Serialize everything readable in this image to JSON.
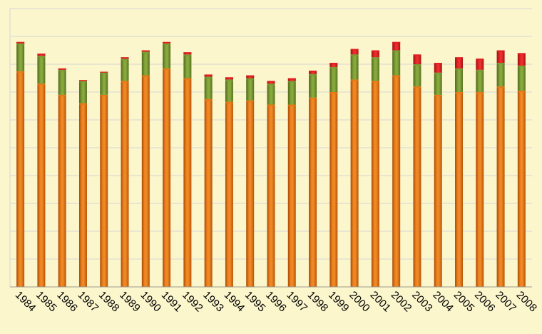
{
  "chart_data": {
    "type": "bar",
    "stacked": true,
    "title": "",
    "xlabel": "",
    "ylabel": "",
    "ylim": [
      0,
      100
    ],
    "grid": true,
    "legend": "none",
    "categories": [
      "1984",
      "1985",
      "1986",
      "1987",
      "1988",
      "1989",
      "1990",
      "1991",
      "1992",
      "1993",
      "1994",
      "1995",
      "1996",
      "1997",
      "1998",
      "1999",
      "2000",
      "2001",
      "2002",
      "2003",
      "2004",
      "2005",
      "2006",
      "2007",
      "2008"
    ],
    "series": [
      {
        "color": "#e87511",
        "values": [
          77.5,
          73,
          69,
          66,
          69,
          74,
          76,
          78.5,
          75,
          67.5,
          66.5,
          67,
          65.5,
          65.5,
          68,
          70,
          74.5,
          74,
          76,
          72,
          69,
          70,
          70,
          72,
          70.5
        ]
      },
      {
        "color": "#7a9a32",
        "values": [
          10,
          10,
          9,
          8,
          8,
          8,
          8.5,
          9,
          8.5,
          8,
          8,
          8,
          7.5,
          8.5,
          8.5,
          9,
          9,
          8.5,
          9,
          8,
          8,
          8.5,
          8,
          8.5,
          9
        ]
      },
      {
        "color": "#e01f1f",
        "values": [
          0.5,
          0.8,
          0.5,
          0.3,
          0.3,
          0.5,
          0.5,
          0.5,
          0.8,
          0.8,
          0.8,
          1,
          1,
          1,
          1.2,
          1.5,
          2,
          2.5,
          3,
          3.5,
          3.5,
          4,
          4,
          4.5,
          4.5
        ]
      }
    ]
  }
}
